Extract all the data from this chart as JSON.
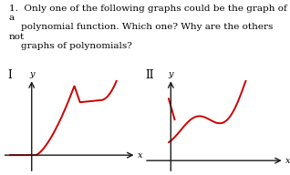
{
  "text_question": "1.  Only one of the following graphs could be the graph of a\n     polynomial function. Which one? Why are the others not\n     graphs of polynomials?",
  "label_I": "I",
  "label_II": "II",
  "curve_color": "#cc0000",
  "curve_lw": 1.4,
  "axis_color": "#1a1a1a",
  "bg_color": "#ffffff",
  "text_fontsize": 7.5,
  "label_fontsize": 8.5
}
